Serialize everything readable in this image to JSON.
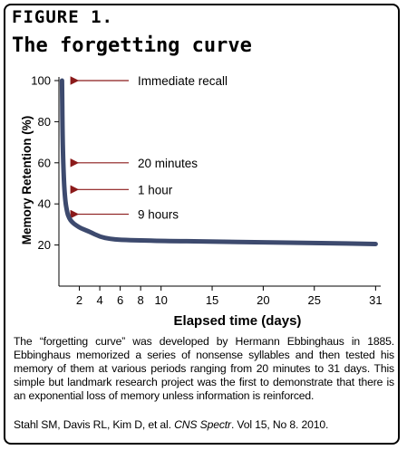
{
  "figure": {
    "label": "FIGURE 1.",
    "title": "The forgetting curve"
  },
  "chart_data": {
    "type": "line",
    "xlabel": "Elapsed time (days)",
    "ylabel": "Memory Retention (%)",
    "x_ticks": [
      2,
      4,
      6,
      8,
      10,
      15,
      20,
      25,
      31
    ],
    "y_ticks": [
      20,
      40,
      60,
      80,
      100
    ],
    "xlim": [
      0,
      31.5
    ],
    "ylim": [
      0,
      100
    ],
    "series": [
      {
        "x": [
          0.3,
          0.35,
          0.45,
          0.6,
          0.8,
          1.0,
          1.3,
          1.7,
          2.2,
          3.0,
          4.0,
          5.0,
          6.0,
          8.0,
          10.0,
          15.0,
          20.0,
          25.0,
          31.0
        ],
        "y": [
          100,
          75,
          55,
          42,
          36,
          33,
          31,
          29.5,
          28,
          26.5,
          24,
          23,
          22.5,
          22.3,
          22,
          21.7,
          21.3,
          21,
          20.5
        ]
      }
    ],
    "annotations": [
      {
        "text": "Immediate recall",
        "y": 100
      },
      {
        "text": "20 minutes",
        "y": 60
      },
      {
        "text": "1 hour",
        "y": 47
      },
      {
        "text": "9 hours",
        "y": 35
      }
    ],
    "line_color": "#3d4a6e",
    "arrow_color": "#8b1a1a"
  },
  "caption": "The “forgetting curve” was developed by Hermann Ebbinghaus in 1885. Ebbinghaus memorized a series of nonsense syllables and then tested his memory of them at various periods ranging from 20 minutes to 31 days.  This simple but landmark research project was the first to demonstrate that there is an exponential loss of memory unless information is reinforced.",
  "citation": {
    "authors": "Stahl SM, Davis RL, Kim D, et al.",
    "journal": "CNS Spectr",
    "details": ". Vol 15, No 8. 2010."
  }
}
